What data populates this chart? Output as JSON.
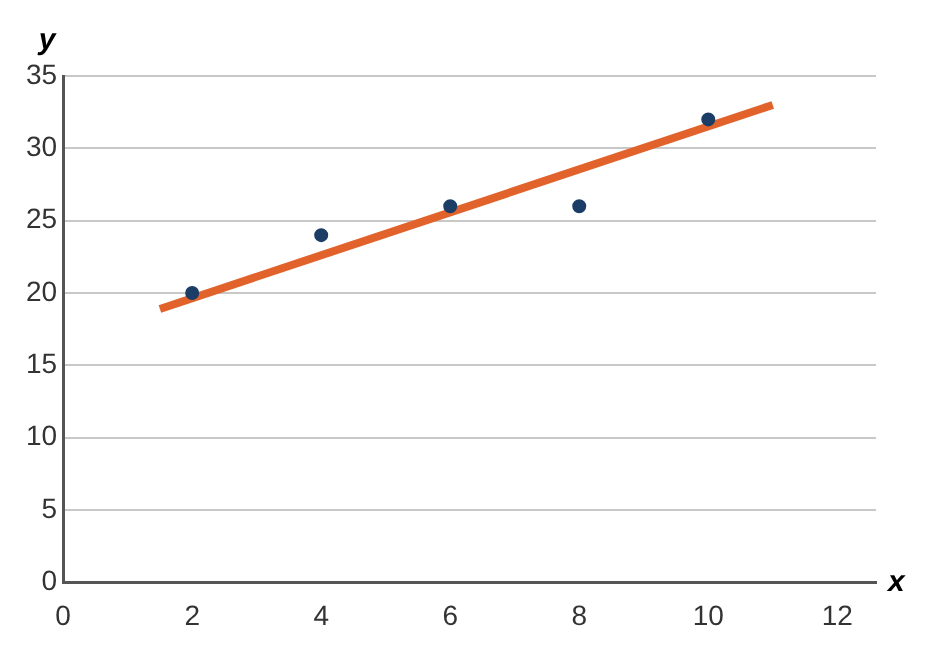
{
  "chart_data": {
    "type": "scatter",
    "xlabel": "x",
    "ylabel": "y",
    "series": [
      {
        "type": "scatter",
        "color": "#1b3d66",
        "marker": "circle",
        "x": [
          2,
          4,
          6,
          8,
          10
        ],
        "values": [
          20,
          24,
          26,
          26,
          32
        ]
      },
      {
        "type": "line",
        "marker": "none",
        "color": "#e2622b",
        "x": [
          1.5,
          11
        ],
        "values": [
          18.9,
          33
        ]
      }
    ],
    "xlim": [
      0,
      12.6
    ],
    "xticks": [
      0,
      2,
      4,
      6,
      8,
      10,
      12
    ],
    "ylim": [
      0,
      35
    ],
    "yticks": [
      0,
      5,
      10,
      15,
      20,
      25,
      30,
      35
    ],
    "grid": "y",
    "line_style": "solid",
    "legend": false
  }
}
